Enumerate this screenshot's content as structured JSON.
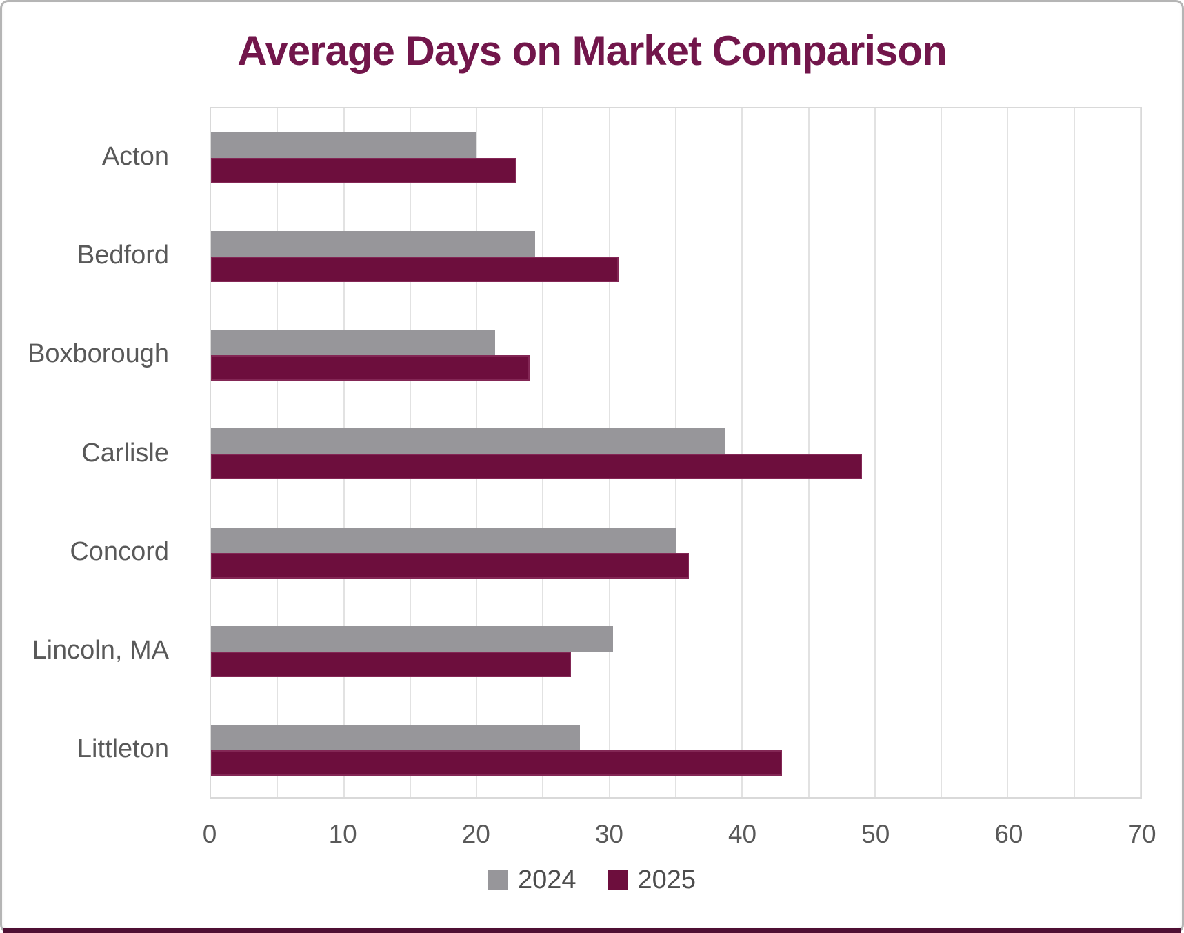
{
  "title": "Average Days on Market Comparison",
  "chart_data": {
    "type": "bar",
    "orientation": "horizontal",
    "title": "Average Days on Market Comparison",
    "xlabel": "",
    "ylabel": "",
    "categories": [
      "Acton",
      "Bedford",
      "Boxborough",
      "Carlisle",
      "Concord",
      "Lincoln, MA",
      "Littleton"
    ],
    "series": [
      {
        "name": "2024",
        "color": "#97969a",
        "values": [
          20,
          24.4,
          21.4,
          38.7,
          35,
          30.3,
          27.8
        ]
      },
      {
        "name": "2025",
        "color": "#6d0e3d",
        "values": [
          23,
          30.7,
          24,
          49,
          36,
          27.1,
          43
        ]
      }
    ],
    "xlim": [
      0,
      70
    ],
    "x_ticks": [
      0,
      10,
      20,
      30,
      40,
      50,
      60,
      70
    ],
    "gridline_step": 5,
    "grid": true,
    "legend_position": "bottom"
  },
  "legend": {
    "items": [
      {
        "label": "2024",
        "color": "#97969a"
      },
      {
        "label": "2025",
        "color": "#6d0e3d"
      }
    ]
  },
  "colors": {
    "title": "#72164b",
    "bar_2024": "#97969a",
    "bar_2025": "#6d0e3d",
    "axis_text": "#595959",
    "gridline": "#e2e2e2",
    "bottom_accent": "#4f0f33"
  }
}
